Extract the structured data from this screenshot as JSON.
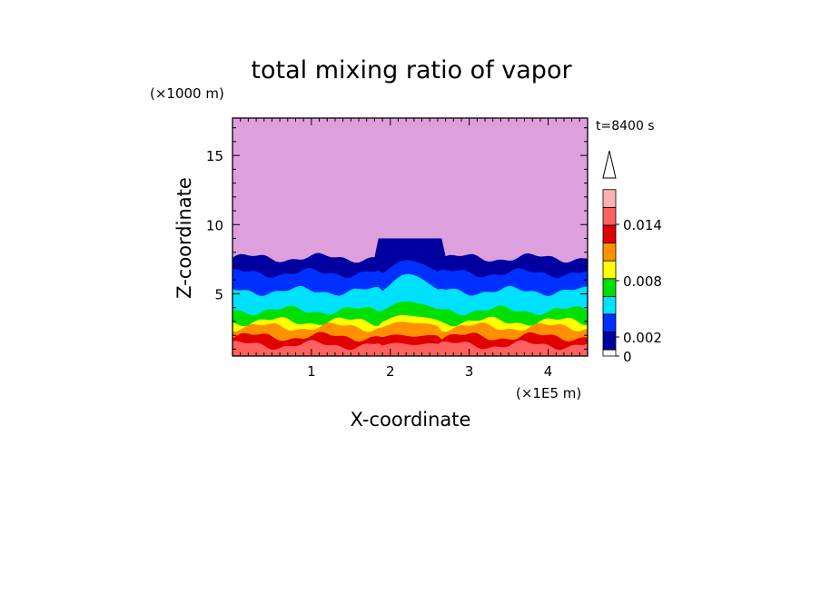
{
  "chart_data": {
    "type": "heatmap",
    "title": "total mixing ratio of vapor",
    "xlabel": "X-coordinate",
    "ylabel": "Z-coordinate",
    "x_unit": "(×1E5 m)",
    "y_unit": "(×1000 m)",
    "time_label": "t=8400 s",
    "xlim": [
      0,
      4.5
    ],
    "ylim": [
      0.5,
      17.7
    ],
    "x_ticks": [
      "1",
      "2",
      "3",
      "4"
    ],
    "x_tick_values": [
      1,
      2,
      3,
      4
    ],
    "y_ticks": [
      "5",
      "10",
      "15"
    ],
    "y_tick_values": [
      5,
      10,
      15
    ],
    "colorbar": {
      "tick_labels": [
        "0",
        "0.002",
        "0.008",
        "0.014"
      ],
      "tick_values": [
        0,
        0.002,
        0.008,
        0.014
      ],
      "levels": [
        0,
        0.0005,
        0.001,
        0.002,
        0.004,
        0.006,
        0.008,
        0.01,
        0.012,
        0.014,
        0.016
      ],
      "colors": [
        "#ffffff",
        "#0000a0",
        "#0030ff",
        "#00e0ff",
        "#00e000",
        "#ffff00",
        "#ff9000",
        "#e00000",
        "#ff6060",
        "#ffb0b0",
        "#ffffff"
      ],
      "extend": "max"
    },
    "layers": [
      {
        "level": "above",
        "color": "#dda0dd",
        "z_top": 17.7
      },
      {
        "level": 0.0005,
        "color": "#0000a0",
        "z_top_edge": 7.6,
        "z_top_center": 9.0
      },
      {
        "level": 0.001,
        "color": "#0030ff",
        "z_top_edge": 6.5,
        "z_top_center": 7.5
      },
      {
        "level": 0.002,
        "color": "#00e0ff",
        "z_top_edge": 5.2,
        "z_top_center": 6.5
      },
      {
        "level": 0.004,
        "color": "#00e000",
        "z_top_edge": 3.8,
        "z_top_center": 4.5
      },
      {
        "level": 0.006,
        "color": "#ffff00",
        "z_top_edge": 3.0,
        "z_top_center": 3.5
      },
      {
        "level": 0.008,
        "color": "#ff9000",
        "z_top_edge": 2.6,
        "z_top_center": 3.0
      },
      {
        "level": 0.01,
        "color": "#e00000",
        "z_top_edge": 1.9,
        "z_top_center": 2.0
      },
      {
        "level": 0.012,
        "color": "#ff6060",
        "z_top_edge": 1.3,
        "z_top_center": 1.4
      }
    ],
    "anomaly_x_range": [
      1.85,
      2.65
    ],
    "legend": "right-colorbar"
  }
}
